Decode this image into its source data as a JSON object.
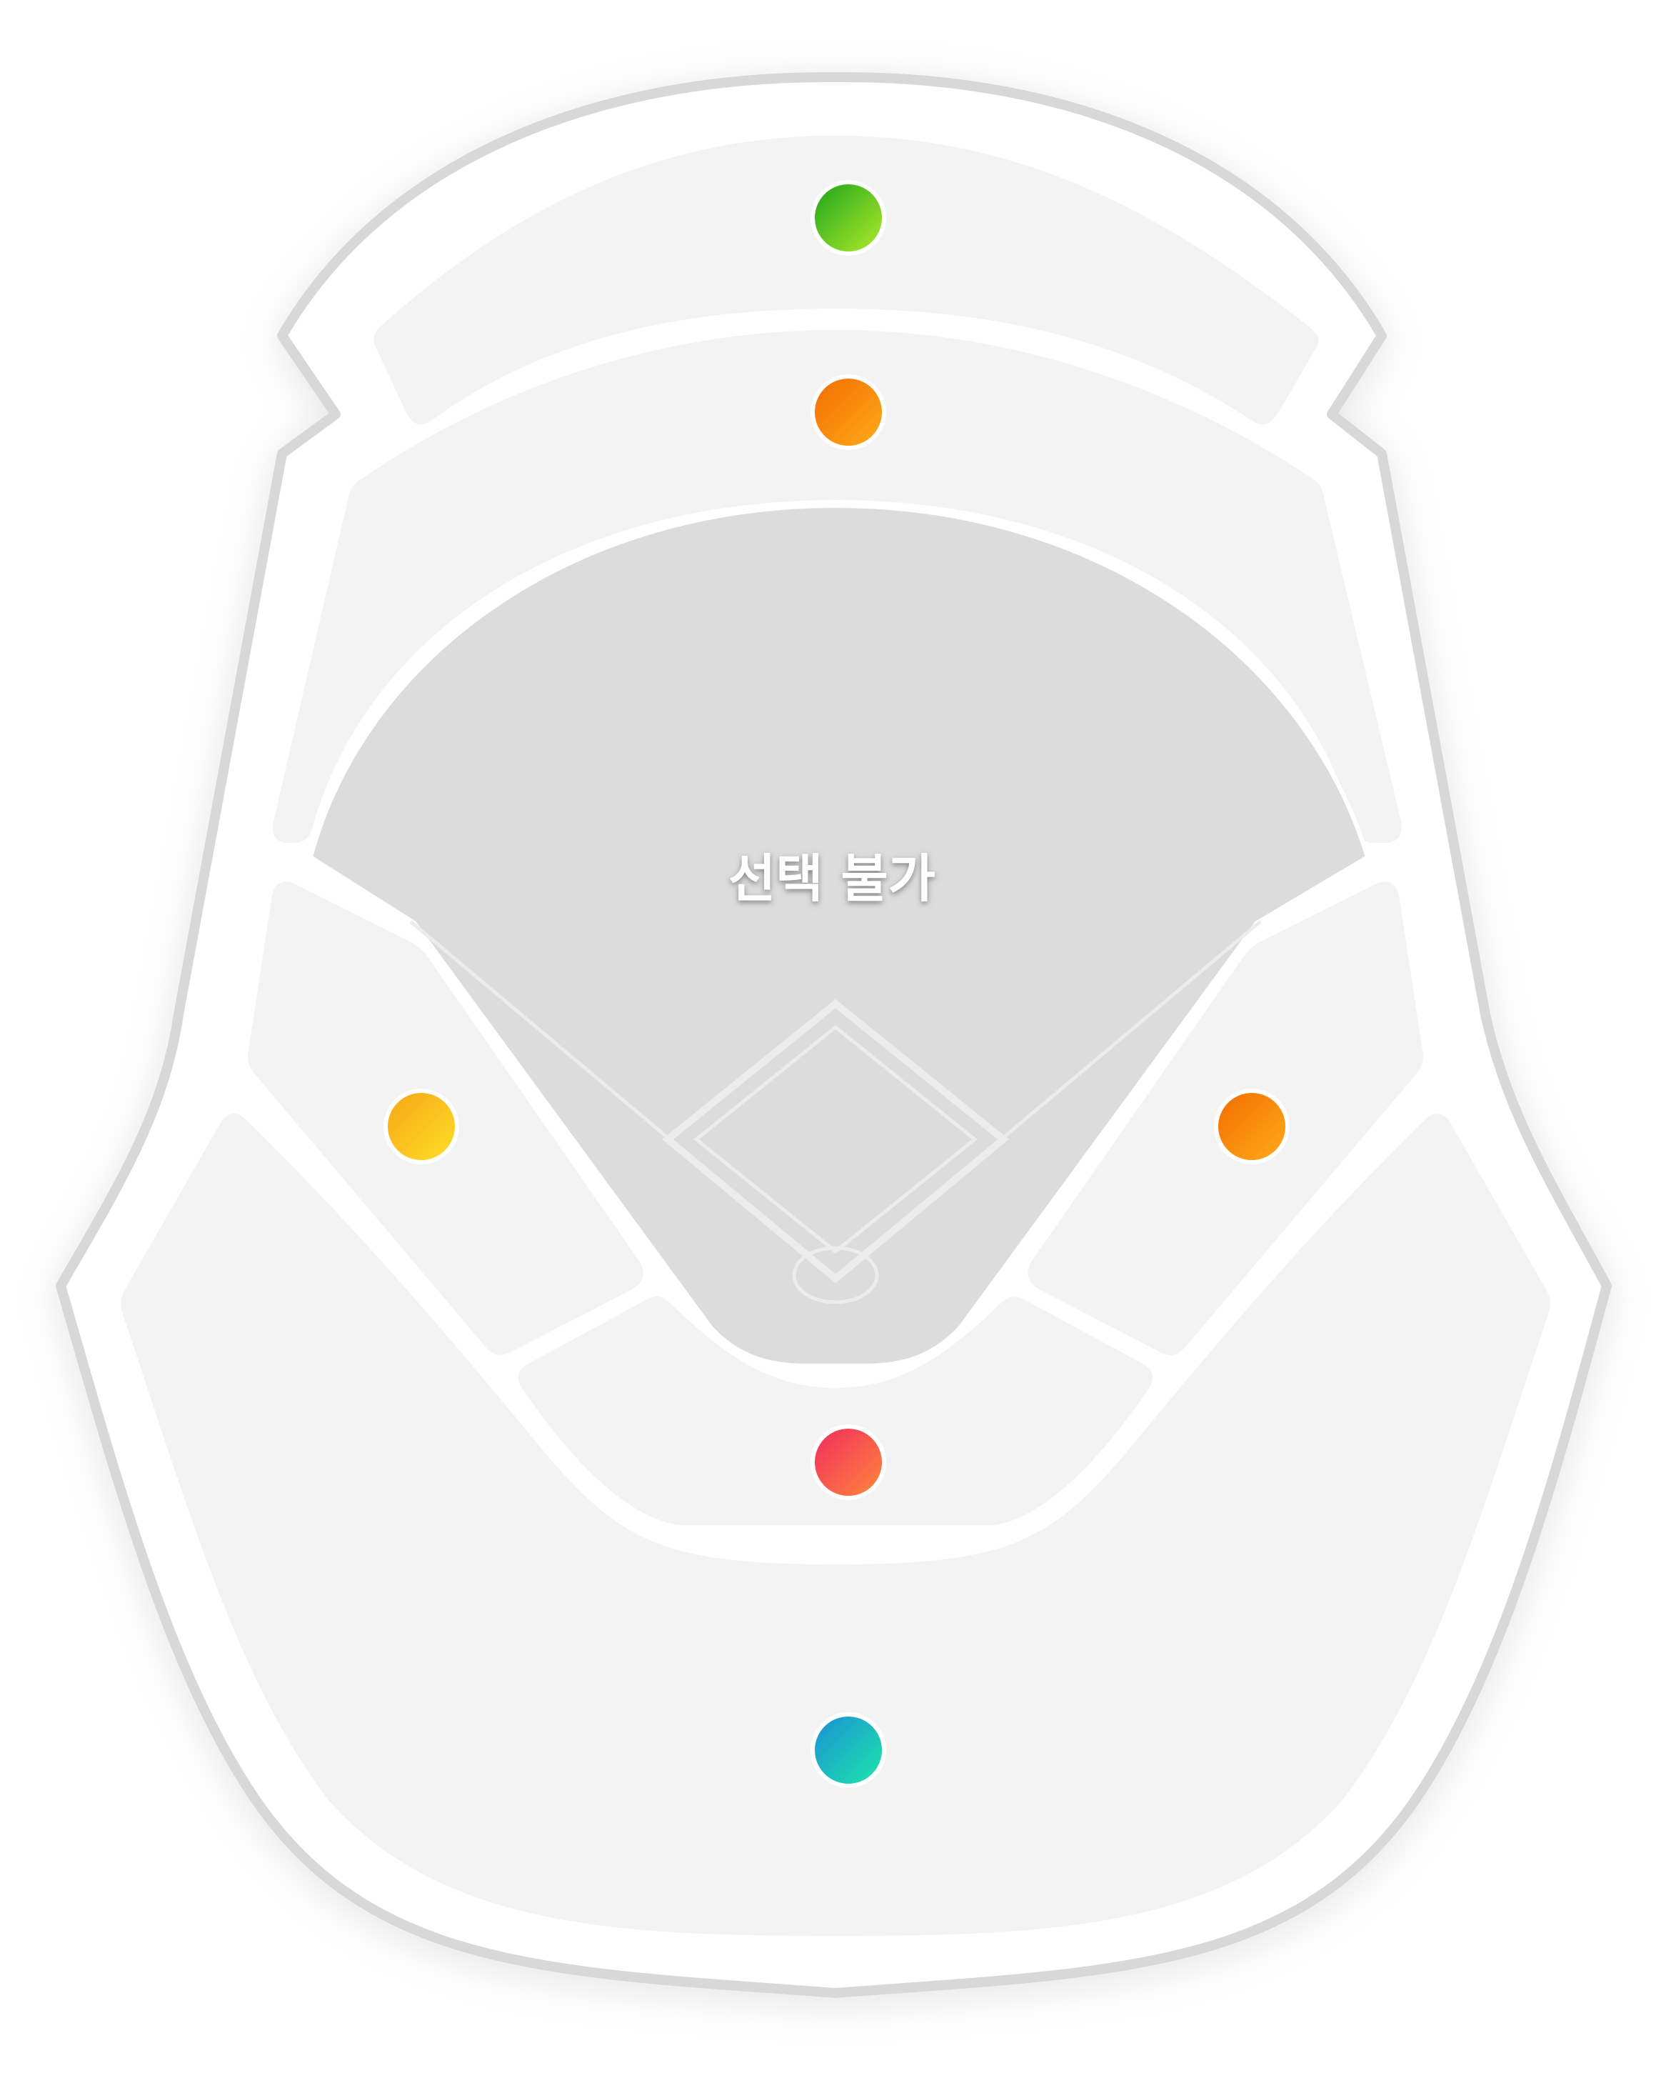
{
  "field": {
    "label": "선택 불가"
  },
  "markers": [
    {
      "id": "outfield-upper",
      "gradient": [
        "#1aa31a",
        "#b6ec2c"
      ]
    },
    {
      "id": "outfield-lower",
      "gradient": [
        "#f26a00",
        "#ffae1a"
      ]
    },
    {
      "id": "left-infield",
      "gradient": [
        "#f5a415",
        "#ffe12a"
      ]
    },
    {
      "id": "right-infield",
      "gradient": [
        "#f26a00",
        "#ffae1a"
      ]
    },
    {
      "id": "home-box",
      "gradient": [
        "#f2295f",
        "#ff8a3a"
      ]
    },
    {
      "id": "home-outer",
      "gradient": [
        "#1a8fd6",
        "#1ee8a8"
      ]
    }
  ],
  "colors": {
    "outline": "#d8d8d8",
    "section_fill": "#f3f3f3",
    "field_fill": "#dcdcdc",
    "diamond_lines": "#ededed"
  }
}
